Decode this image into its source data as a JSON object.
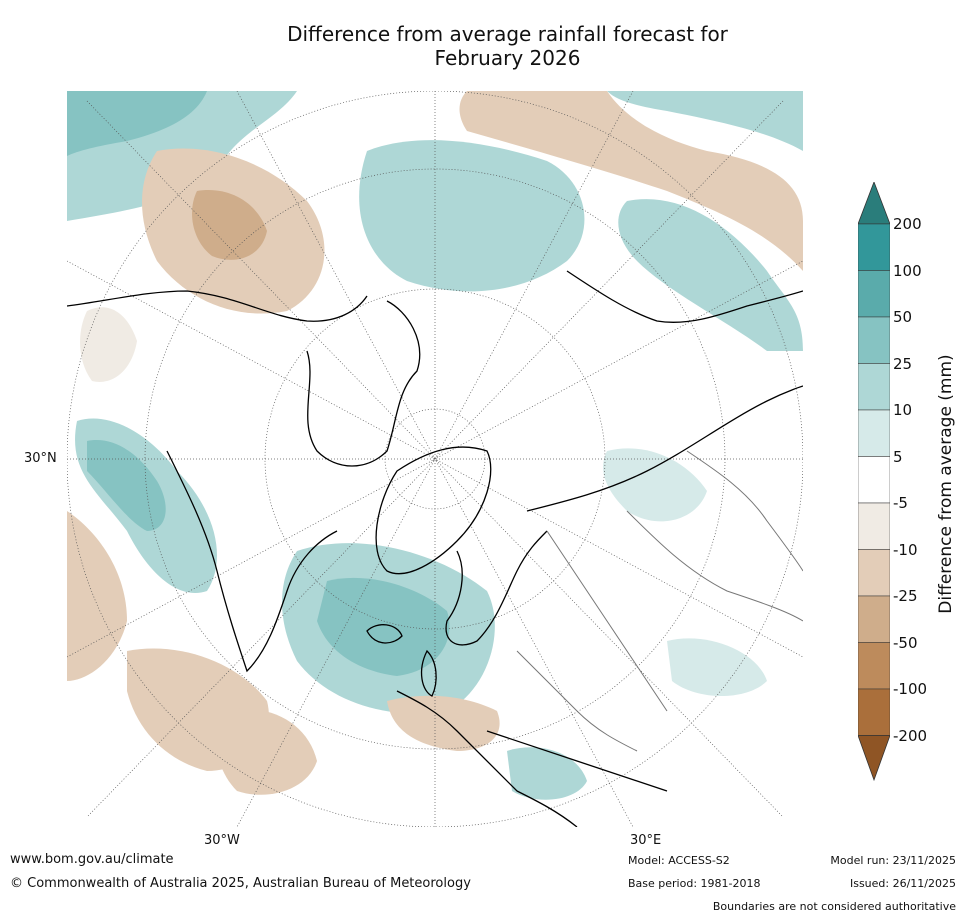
{
  "title": {
    "line1": "Difference from average rainfall forecast for",
    "line2": "February 2026"
  },
  "map": {
    "projection": "polar stereographic (north)",
    "lat_label": "30°N",
    "lon_labels": [
      "30°W",
      "30°E"
    ]
  },
  "colorbar": {
    "title": "Difference from average (mm)",
    "tick_labels": [
      "200",
      "100",
      "50",
      "25",
      "10",
      "5",
      "-5",
      "-10",
      "-25",
      "-50",
      "-100",
      "-200"
    ],
    "colors": [
      "#2a7d7b",
      "#32979a",
      "#5aabab",
      "#86c3c2",
      "#aed7d6",
      "#d6eae9",
      "#ffffff",
      "#f0ebe4",
      "#e3cdb8",
      "#cfad8b",
      "#bd8b5c",
      "#aa6f3b",
      "#8f5525"
    ]
  },
  "footer": {
    "website": "www.bom.gov.au/climate",
    "copyright": "© Commonwealth of Australia 2025, Australian Bureau of Meteorology",
    "model": "Model: ACCESS-S2",
    "base_period": "Base period: 1981-2018",
    "model_run": "Model run: 23/11/2025",
    "issued": "Issued: 26/11/2025",
    "disclaimer": "Boundaries are not considered authoritative"
  }
}
